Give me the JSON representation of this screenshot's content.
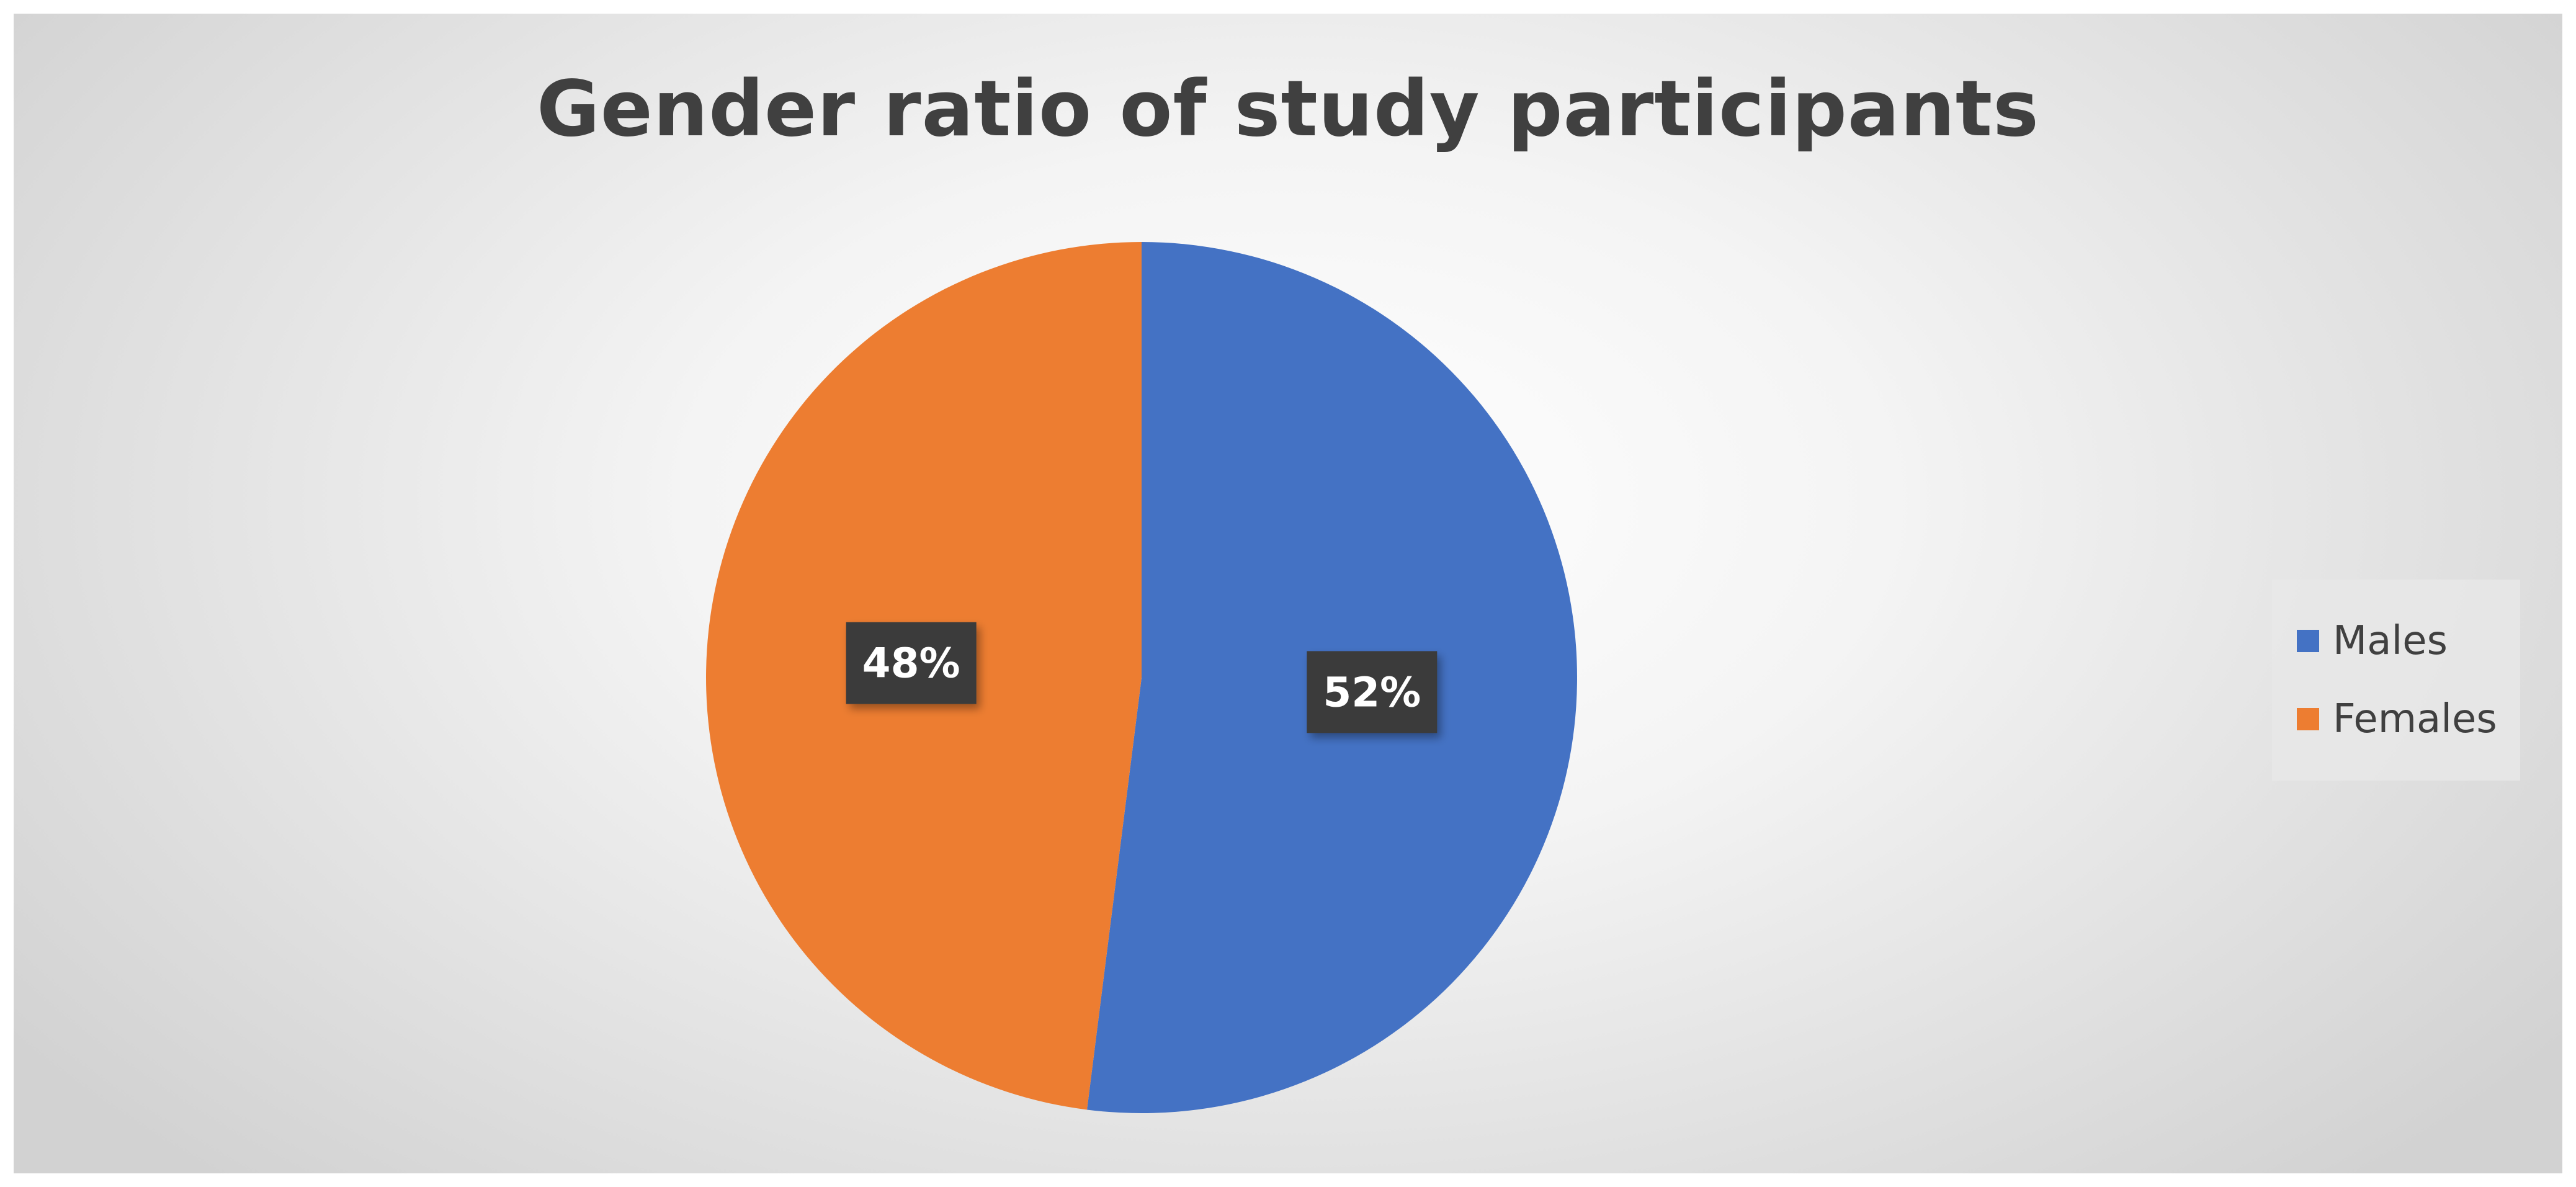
{
  "chart_data": {
    "type": "pie",
    "title": "Gender ratio of study participants",
    "categories": [
      "Males",
      "Females"
    ],
    "values": [
      52,
      48
    ],
    "data_labels": [
      "52%",
      "48%"
    ],
    "colors": [
      "#4472c4",
      "#ed7d31"
    ],
    "start_angle_deg": 0,
    "direction": "clockwise",
    "legend": {
      "position": "right",
      "entries": [
        "Males",
        "Females"
      ]
    }
  }
}
